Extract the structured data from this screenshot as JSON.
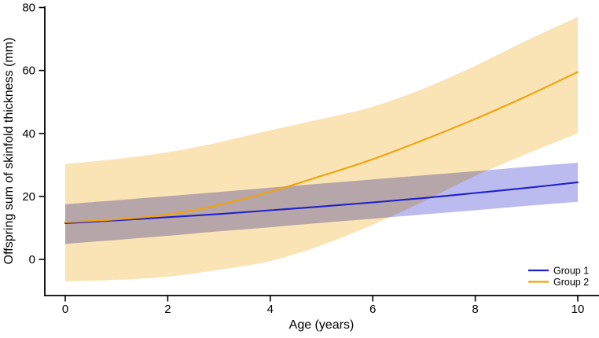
{
  "figure": {
    "title": "",
    "background": "#ffffff",
    "axis_color": "#000000"
  },
  "chart_data": {
    "type": "line",
    "title": "",
    "xlabel": "Age (years)",
    "ylabel": "Offspring sum of skinfold thickness (mm)",
    "x": [
      0,
      1,
      2,
      3,
      4,
      5,
      6,
      7,
      8,
      9,
      10
    ],
    "x_ticks": [
      0,
      2,
      4,
      6,
      8,
      10
    ],
    "y_ticks": [
      0,
      20,
      40,
      60,
      80
    ],
    "xlim": [
      0,
      10
    ],
    "ylim": [
      -11.5,
      80.5
    ],
    "grid": false,
    "legend_position": "bottom-right",
    "series": [
      {
        "name": "Group 1",
        "color": "#2020C8",
        "band_color": "#BBBBF0",
        "values": [
          11.5,
          12.4,
          13.4,
          14.4,
          15.6,
          16.8,
          18.1,
          19.5,
          21.1,
          22.7,
          24.5
        ],
        "ci_upper": [
          17.5,
          18.8,
          20.1,
          21.4,
          22.8,
          24.1,
          25.4,
          26.7,
          28.0,
          29.4,
          30.7
        ],
        "ci_lower": [
          4.9,
          6.2,
          7.5,
          8.9,
          10.2,
          11.6,
          12.9,
          14.3,
          15.6,
          17.0,
          18.3
        ]
      },
      {
        "name": "Group 2",
        "color": "#F0A30A",
        "band_color": "#FAE3B4",
        "values": [
          11.8,
          12.7,
          14.2,
          17.3,
          21.5,
          26.5,
          31.8,
          38.0,
          44.6,
          51.8,
          59.5
        ],
        "ci_upper": [
          30.3,
          31.9,
          34.0,
          37.2,
          41.0,
          44.6,
          48.5,
          54.3,
          61.5,
          69.5,
          77.0
        ],
        "ci_lower": [
          -7.0,
          -6.5,
          -5.5,
          -3.3,
          -0.5,
          4.5,
          11.0,
          18.5,
          26.5,
          33.5,
          40.0
        ]
      }
    ]
  }
}
